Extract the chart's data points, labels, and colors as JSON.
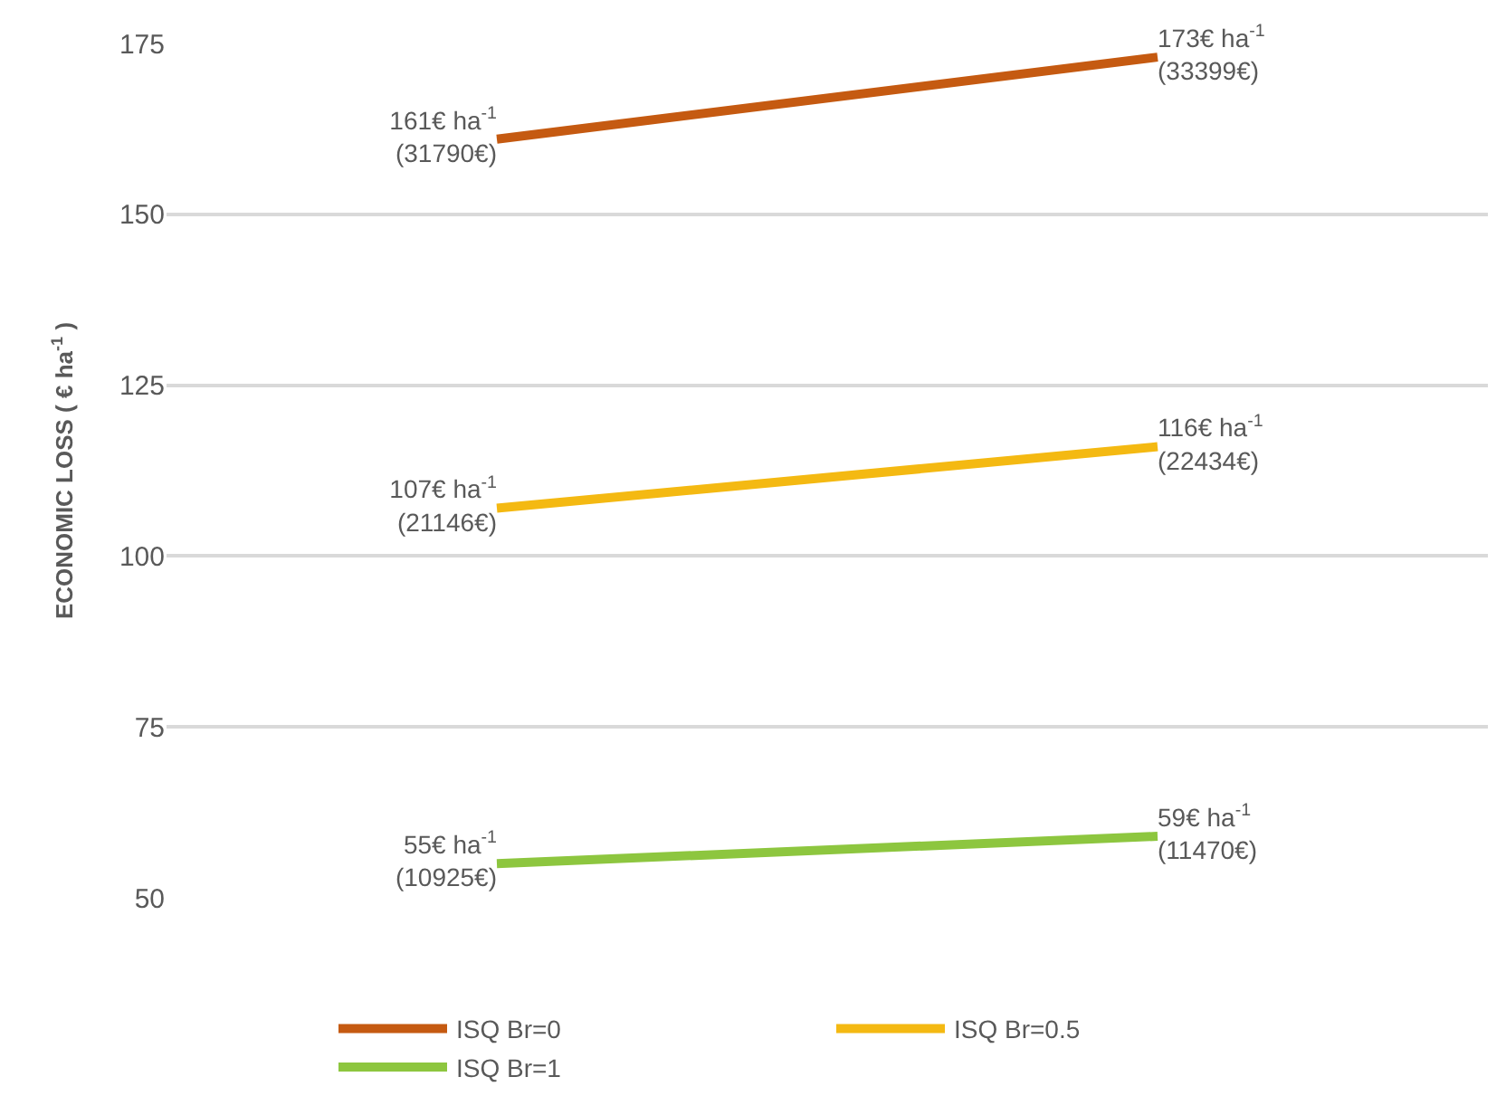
{
  "chart_data": {
    "type": "line",
    "ylabel": "ECONOMIC LOSS ( € ha$^{-1}$ )",
    "categories": [
      null,
      null
    ],
    "series": [
      {
        "name": "ISQ Br=0",
        "color": "#c55a11",
        "values": [
          161,
          173
        ],
        "value_labels": [
          "161€ ha$^{-1}$\n(31790€)",
          "173€ ha$^{-1}$\n(33399€)"
        ]
      },
      {
        "name": "ISQ Br=0.5",
        "color": "#f4b912",
        "values": [
          107,
          116
        ],
        "value_labels": [
          "107€ ha$^{-1}$\n(21146€)",
          "116€ ha$^{-1}$\n(22434€)"
        ]
      },
      {
        "name": "ISQ Br=1",
        "color": "#8dc63f",
        "values": [
          55,
          59
        ],
        "value_labels": [
          "55€ ha$^{-1}$\n(10925€)",
          "59€ ha$^{-1}$\n(11470€)"
        ]
      }
    ],
    "ylim": [
      50,
      175
    ],
    "yticks": [
      50,
      75,
      100,
      125,
      150,
      175
    ],
    "grid": "y",
    "legend": "bottom",
    "marker": "none",
    "line_style": "solid"
  }
}
